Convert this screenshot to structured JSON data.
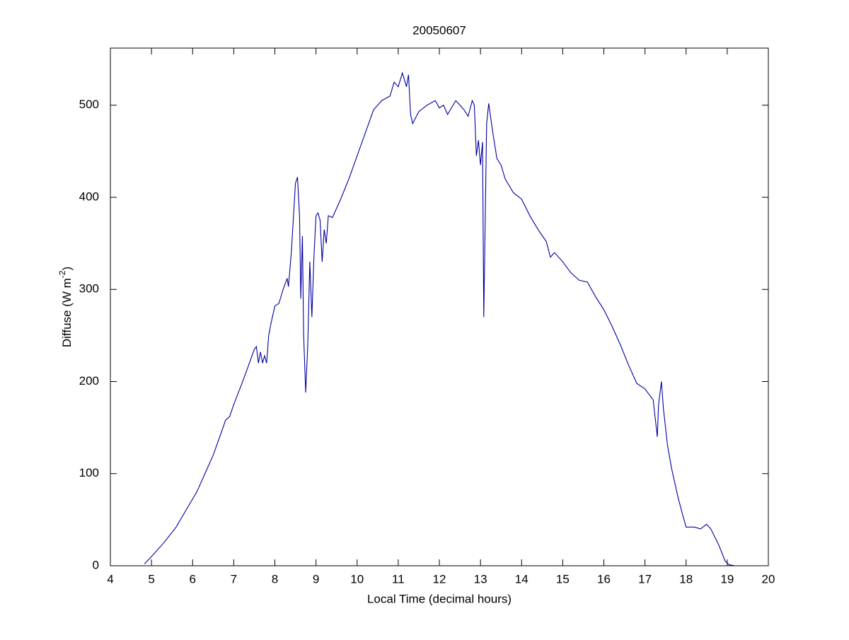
{
  "chart_data": {
    "type": "line",
    "title": "20050607",
    "xlabel": "Local Time (decimal hours)",
    "ylabel": {
      "text": "Diffuse (W m",
      "superscript": "-2",
      "suffix": ")"
    },
    "xlim": [
      4,
      20
    ],
    "xticks": [
      4,
      5,
      6,
      7,
      8,
      9,
      10,
      11,
      12,
      13,
      14,
      15,
      16,
      17,
      18,
      19,
      20
    ],
    "ylim": [
      0,
      562
    ],
    "yticks": [
      0,
      100,
      200,
      300,
      400,
      500
    ],
    "grid": false,
    "series": [
      {
        "color": "#0000a0",
        "x": [
          4.83,
          5.0,
          5.3,
          5.6,
          5.9,
          6.1,
          6.3,
          6.5,
          6.7,
          6.8,
          6.9,
          7.0,
          7.2,
          7.3,
          7.5,
          7.55,
          7.6,
          7.65,
          7.7,
          7.75,
          7.8,
          7.85,
          7.9,
          8.0,
          8.1,
          8.2,
          8.3,
          8.33,
          8.4,
          8.5,
          8.55,
          8.6,
          8.63,
          8.67,
          8.7,
          8.75,
          8.8,
          8.85,
          8.9,
          8.95,
          9.0,
          9.05,
          9.1,
          9.15,
          9.2,
          9.25,
          9.3,
          9.4,
          9.6,
          9.8,
          10.0,
          10.2,
          10.4,
          10.6,
          10.8,
          10.9,
          11.0,
          11.1,
          11.2,
          11.25,
          11.3,
          11.35,
          11.5,
          11.7,
          11.9,
          12.0,
          12.1,
          12.2,
          12.4,
          12.6,
          12.7,
          12.8,
          12.85,
          12.9,
          12.95,
          13.0,
          13.05,
          13.08,
          13.1,
          13.15,
          13.2,
          13.3,
          13.4,
          13.5,
          13.6,
          13.8,
          14.0,
          14.2,
          14.4,
          14.6,
          14.7,
          14.8,
          15.0,
          15.2,
          15.4,
          15.6,
          15.8,
          16.0,
          16.2,
          16.4,
          16.6,
          16.8,
          17.0,
          17.2,
          17.3,
          17.33,
          17.4,
          17.45,
          17.55,
          17.65,
          17.8,
          17.9,
          18.0,
          18.2,
          18.35,
          18.5,
          18.6,
          18.8,
          18.95,
          19.05,
          19.2
        ],
        "values": [
          2,
          10,
          25,
          42,
          65,
          80,
          100,
          120,
          145,
          158,
          162,
          175,
          198,
          210,
          235,
          238,
          220,
          232,
          220,
          228,
          220,
          250,
          262,
          282,
          285,
          300,
          312,
          303,
          340,
          415,
          422,
          380,
          290,
          358,
          250,
          188,
          240,
          330,
          270,
          335,
          380,
          383,
          375,
          330,
          365,
          350,
          380,
          378,
          398,
          420,
          445,
          470,
          495,
          505,
          510,
          525,
          520,
          535,
          520,
          533,
          490,
          480,
          493,
          500,
          505,
          497,
          500,
          490,
          505,
          495,
          488,
          505,
          500,
          445,
          462,
          435,
          460,
          270,
          330,
          480,
          502,
          470,
          442,
          435,
          420,
          405,
          398,
          380,
          365,
          352,
          335,
          340,
          330,
          318,
          310,
          308,
          292,
          278,
          260,
          240,
          218,
          198,
          192,
          180,
          140,
          175,
          200,
          170,
          130,
          105,
          75,
          58,
          42,
          42,
          40,
          45,
          40,
          22,
          5,
          1,
          0
        ]
      }
    ]
  }
}
